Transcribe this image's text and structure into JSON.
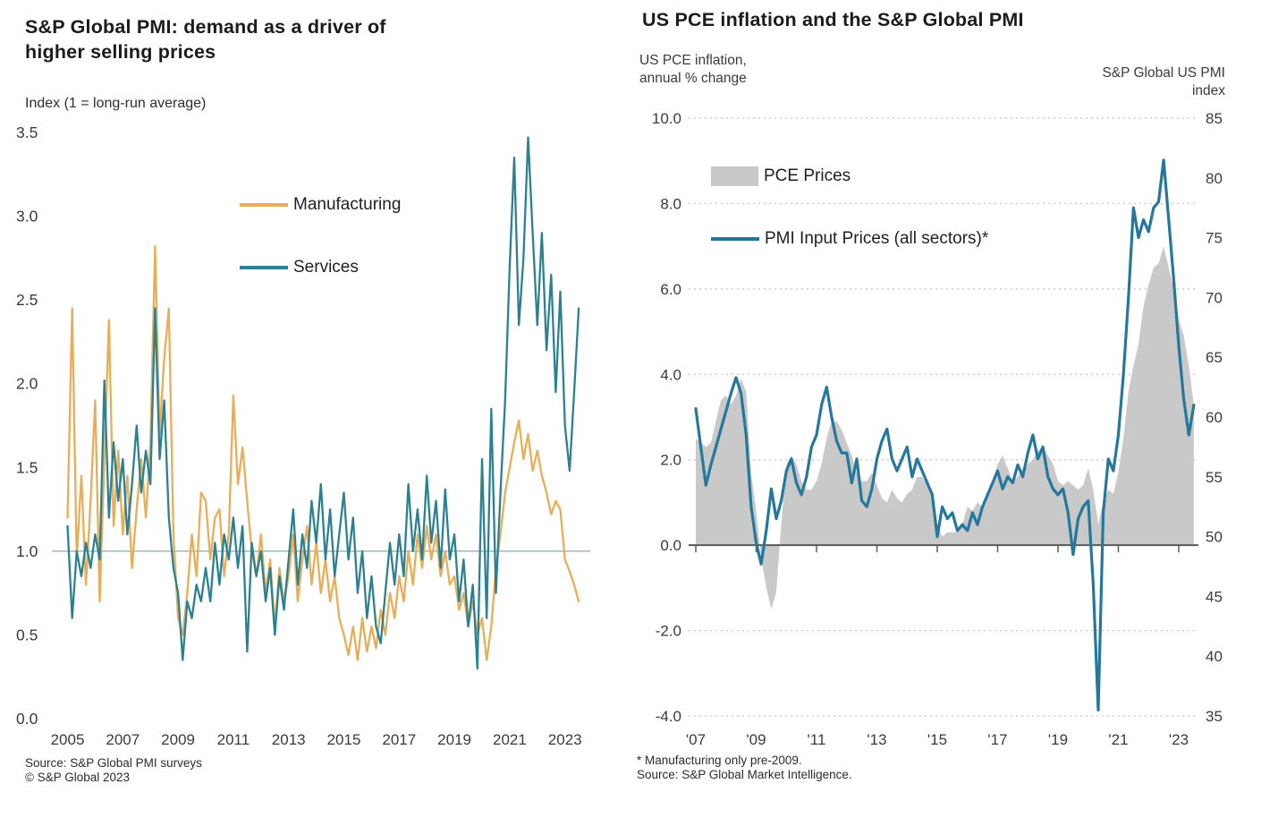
{
  "page": {
    "background": "#ffffff"
  },
  "colors": {
    "manufacturing": "#e9ad58",
    "services": "#2b8191",
    "pmi_line": "#24789b",
    "pce_area": "#c9c9c9",
    "reference_line": "#93a6ac",
    "zero_line": "#5a5a5a",
    "gridline": "#c4c4c4",
    "tick_text": "#3b3b3b"
  },
  "chart_data": [
    {
      "type": "line",
      "title_lines": [
        "S&P Global PMI: demand as a driver of",
        "higher selling prices"
      ],
      "ylabel": "Index (1 = long-run average)",
      "x_start": 2007,
      "x_first_year": 2005,
      "points_per_year": 6,
      "ylim": [
        0.0,
        3.5
      ],
      "yticks": [
        "3.5",
        "3.0",
        "2.5",
        "2.0",
        "1.5",
        "1.0",
        "0.5",
        "0.0"
      ],
      "ytick_values": [
        3.5,
        3.0,
        2.5,
        2.0,
        1.5,
        1.0,
        0.5,
        0.0
      ],
      "xtick_years": [
        2005,
        2007,
        2009,
        2011,
        2013,
        2015,
        2017,
        2019,
        2021,
        2023
      ],
      "xtick_labels": [
        "2005",
        "2007",
        "2009",
        "2011",
        "2013",
        "2015",
        "2017",
        "2019",
        "2021",
        "2023"
      ],
      "reference_line_value": 1.0,
      "legend_position": "top-center-inside",
      "grid": "off",
      "series": [
        {
          "name": "Manufacturing",
          "color": "#e9ad58",
          "values": [
            1.2,
            2.45,
            0.95,
            1.45,
            0.8,
            1.3,
            1.9,
            0.7,
            1.55,
            2.38,
            1.15,
            1.6,
            1.1,
            1.45,
            0.9,
            1.25,
            1.55,
            1.2,
            1.65,
            2.82,
            1.7,
            2.15,
            2.45,
            1.1,
            0.6,
            0.5,
            0.75,
            1.1,
            0.85,
            1.35,
            1.3,
            0.95,
            1.2,
            1.25,
            0.85,
            1.1,
            1.93,
            1.4,
            1.62,
            1.3,
            1.0,
            0.85,
            1.1,
            0.75,
            0.95,
            0.55,
            0.9,
            0.7,
            0.85,
            1.1,
            0.7,
            0.95,
            1.15,
            0.8,
            1.05,
            0.75,
            0.95,
            0.7,
            0.85,
            0.6,
            0.5,
            0.38,
            0.55,
            0.35,
            0.6,
            0.4,
            0.55,
            0.42,
            0.65,
            0.5,
            0.75,
            0.6,
            0.85,
            0.7,
            1.0,
            0.8,
            1.1,
            0.9,
            1.15,
            0.95,
            1.1,
            0.85,
            1.0,
            0.8,
            0.85,
            0.65,
            0.75,
            0.55,
            0.7,
            0.5,
            0.6,
            0.35,
            0.55,
            0.9,
            1.1,
            1.35,
            1.5,
            1.65,
            1.78,
            1.55,
            1.7,
            1.48,
            1.6,
            1.45,
            1.35,
            1.22,
            1.3,
            1.25,
            0.95,
            0.88,
            0.8,
            0.7
          ]
        },
        {
          "name": "Services",
          "color": "#2b8191",
          "values": [
            1.15,
            0.6,
            1.0,
            0.85,
            1.05,
            0.9,
            1.1,
            0.95,
            2.02,
            1.2,
            1.65,
            1.3,
            1.55,
            1.1,
            1.4,
            1.75,
            1.35,
            1.6,
            1.4,
            2.45,
            1.55,
            1.9,
            1.2,
            0.9,
            0.75,
            0.35,
            0.7,
            0.6,
            0.8,
            0.7,
            0.9,
            0.7,
            1.05,
            0.8,
            1.1,
            0.95,
            1.2,
            0.9,
            1.15,
            0.4,
            1.05,
            0.85,
            1.0,
            0.7,
            0.9,
            0.5,
            0.85,
            0.65,
            0.95,
            1.25,
            0.8,
            1.1,
            0.9,
            1.3,
            1.05,
            1.4,
            0.95,
            1.25,
            0.85,
            1.1,
            1.35,
            0.95,
            1.2,
            0.75,
            1.0,
            0.6,
            0.85,
            0.55,
            0.45,
            0.75,
            1.05,
            0.8,
            1.1,
            0.85,
            1.4,
            1.0,
            1.25,
            0.95,
            1.45,
            1.05,
            1.3,
            0.9,
            1.37,
            0.95,
            1.1,
            0.7,
            0.95,
            0.55,
            0.8,
            0.3,
            1.55,
            0.6,
            1.85,
            0.75,
            1.35,
            1.9,
            2.7,
            3.35,
            2.35,
            2.75,
            3.47,
            2.9,
            2.35,
            2.9,
            2.2,
            2.65,
            1.95,
            2.55,
            1.75,
            1.48,
            1.95,
            2.45
          ]
        }
      ],
      "source_lines": [
        "Source: S&P Global PMI surveys",
        "© S&P Global 2023"
      ]
    },
    {
      "type": "line+area",
      "title": "US PCE inflation and the S&P Global PMI",
      "left_axis_label_lines": [
        "US PCE inflation,",
        "annual % change"
      ],
      "right_axis_label_lines": [
        "S&P Global US PMI",
        "index"
      ],
      "x_first_year": 2007,
      "points_per_year": 6,
      "left_ylim": [
        -4.0,
        10.0
      ],
      "left_yticks": [
        "10.0",
        "8.0",
        "6.0",
        "4.0",
        "2.0",
        "0.0",
        "-2.0",
        "-4.0"
      ],
      "left_ytick_values": [
        10,
        8,
        6,
        4,
        2,
        0,
        -2,
        -4
      ],
      "right_ylim": [
        35,
        85
      ],
      "right_yticks": [
        "85",
        "80",
        "75",
        "70",
        "65",
        "60",
        "55",
        "50",
        "45",
        "40",
        "35"
      ],
      "right_ytick_values": [
        85,
        80,
        75,
        70,
        65,
        60,
        55,
        50,
        45,
        40,
        35
      ],
      "xtick_years": [
        2007,
        2009,
        2011,
        2013,
        2015,
        2017,
        2019,
        2021,
        2023
      ],
      "xtick_labels": [
        "'07",
        "'09",
        "'11",
        "'13",
        "'15",
        "'17",
        "'19",
        "'21",
        "'23"
      ],
      "zero_line_value": 0.0,
      "grid": "dashed-horizontal",
      "legend_position": "top-left-inside",
      "series": [
        {
          "name": "PCE Prices",
          "axis": "left",
          "render": "area",
          "color": "#c9c9c9",
          "values": [
            2.5,
            2.4,
            2.3,
            2.4,
            2.9,
            3.4,
            3.5,
            3.3,
            3.5,
            3.9,
            3.6,
            1.7,
            0.8,
            -0.3,
            -1.0,
            -1.5,
            -1.1,
            0.5,
            1.9,
            2.1,
            1.9,
            1.5,
            1.3,
            1.3,
            1.5,
            1.9,
            2.5,
            2.9,
            2.9,
            2.7,
            2.4,
            2.1,
            1.7,
            1.5,
            1.5,
            1.7,
            1.4,
            1.1,
            1.0,
            1.3,
            1.1,
            1.0,
            1.2,
            1.3,
            1.6,
            1.6,
            1.4,
            1.1,
            0.5,
            0.2,
            0.3,
            0.3,
            0.3,
            0.5,
            0.9,
            0.8,
            1.0,
            0.9,
            1.2,
            1.5,
            1.9,
            2.1,
            1.8,
            1.5,
            1.6,
            1.8,
            1.9,
            2.0,
            2.2,
            2.3,
            2.1,
            1.9,
            1.5,
            1.4,
            1.5,
            1.4,
            1.3,
            1.4,
            1.8,
            1.3,
            0.5,
            1.0,
            1.3,
            1.2,
            1.7,
            2.5,
            3.6,
            4.2,
            4.7,
            5.6,
            6.1,
            6.5,
            6.6,
            7.0,
            6.5,
            6.0,
            5.3,
            4.9,
            4.2,
            3.3
          ]
        },
        {
          "name": "PMI Input Prices (all sectors)*",
          "axis": "right",
          "render": "line",
          "color": "#24789b",
          "values": [
            60.7,
            57.5,
            54.3,
            56.0,
            57.5,
            59.0,
            60.5,
            62.0,
            63.3,
            62.0,
            58.5,
            52.5,
            49.5,
            47.7,
            50.5,
            54.0,
            51.5,
            53.0,
            55.5,
            56.5,
            54.5,
            53.5,
            55.0,
            57.5,
            58.5,
            61.0,
            62.5,
            60.0,
            58.0,
            57.0,
            57.0,
            54.5,
            56.5,
            53.0,
            52.5,
            54.0,
            56.5,
            58.0,
            59.0,
            56.5,
            55.5,
            56.5,
            57.5,
            55.0,
            56.5,
            55.5,
            54.5,
            53.5,
            50.0,
            52.5,
            51.5,
            52.0,
            50.5,
            51.0,
            50.5,
            52.0,
            51.0,
            52.5,
            53.5,
            54.5,
            55.5,
            54.0,
            55.0,
            54.5,
            56.0,
            55.0,
            57.0,
            58.5,
            56.5,
            57.5,
            55.0,
            54.0,
            53.5,
            54.0,
            52.0,
            48.5,
            51.5,
            52.5,
            53.0,
            46.0,
            35.5,
            52.0,
            56.5,
            55.5,
            58.5,
            63.5,
            70.0,
            77.5,
            75.0,
            76.5,
            75.5,
            77.5,
            78.0,
            81.5,
            76.5,
            71.5,
            66.0,
            61.5,
            58.5,
            61.0
          ]
        }
      ],
      "footnote_lines": [
        "* Manufacturing only pre-2009.",
        "Source: S&P Global Market Intelligence."
      ]
    }
  ]
}
